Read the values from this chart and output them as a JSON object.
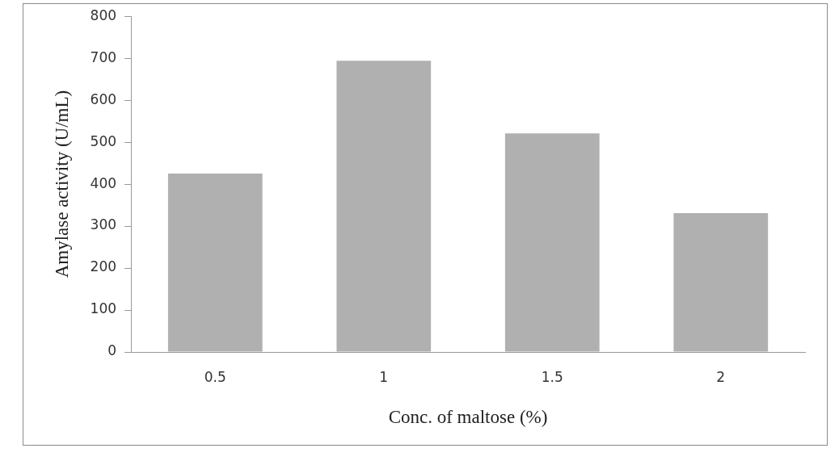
{
  "chart_data": {
    "type": "bar",
    "xlabel": "Conc. of maltose (%)",
    "ylabel": "Amylase activity (U/mL)",
    "categories": [
      "0.5",
      "1",
      "1.5",
      "2"
    ],
    "values": [
      425,
      694,
      521,
      331
    ],
    "color": "#b0b0b0",
    "ylim": [
      0,
      800
    ],
    "yticks": [
      0,
      100,
      200,
      300,
      400,
      500,
      600,
      700,
      800
    ],
    "grid": false,
    "legend": false
  }
}
